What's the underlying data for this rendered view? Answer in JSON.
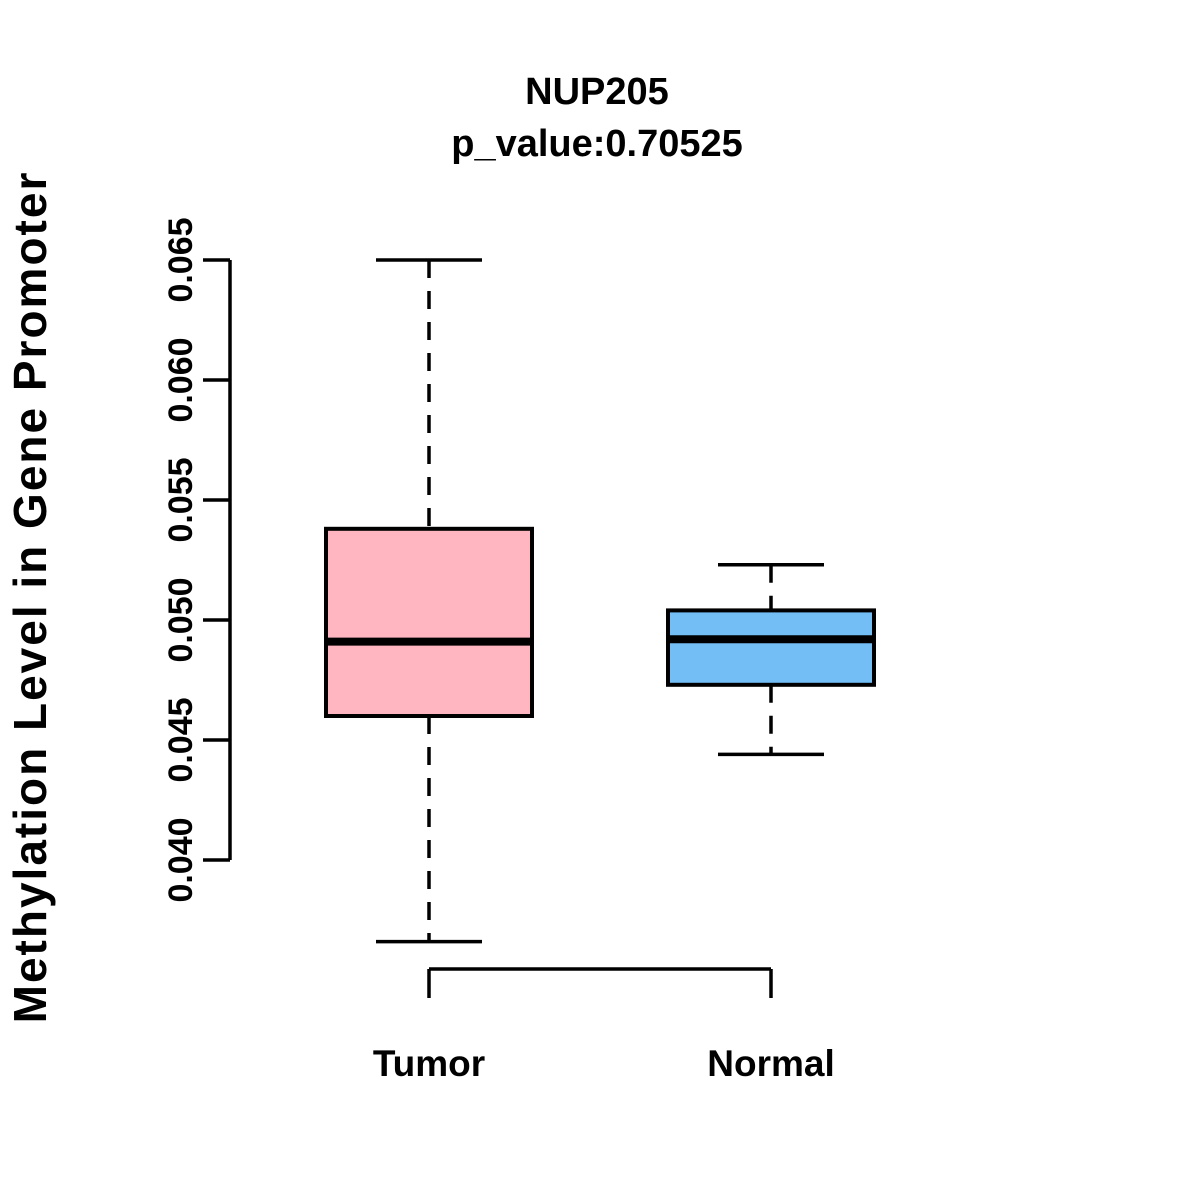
{
  "figure": {
    "background_color": "#ffffff",
    "foreground_color": "#000000"
  },
  "chart_data": {
    "type": "boxplot",
    "title": "NUP205",
    "subtitle": "p_value:0.70525",
    "p_value": 0.70525,
    "ylabel": "Methylation Level in Gene Promoter",
    "xlabel": "",
    "ylim": [
      0.04,
      0.065
    ],
    "y_ticks": [
      0.04,
      0.045,
      0.05,
      0.055,
      0.06,
      0.065
    ],
    "y_tick_labels": [
      "0.040",
      "0.045",
      "0.050",
      "0.055",
      "0.060",
      "0.065"
    ],
    "categories": [
      "Tumor",
      "Normal"
    ],
    "grid": false,
    "legend": "none",
    "whisker_style": "dashed",
    "series": [
      {
        "name": "Tumor",
        "color": "#FFB6C1",
        "whisker_low": 0.0366,
        "q1": 0.046,
        "median": 0.0491,
        "q3": 0.0538,
        "whisker_high": 0.065
      },
      {
        "name": "Normal",
        "color": "#74BEF6",
        "whisker_low": 0.0444,
        "q1": 0.0473,
        "median": 0.0492,
        "q3": 0.0504,
        "whisker_high": 0.0523
      }
    ]
  }
}
